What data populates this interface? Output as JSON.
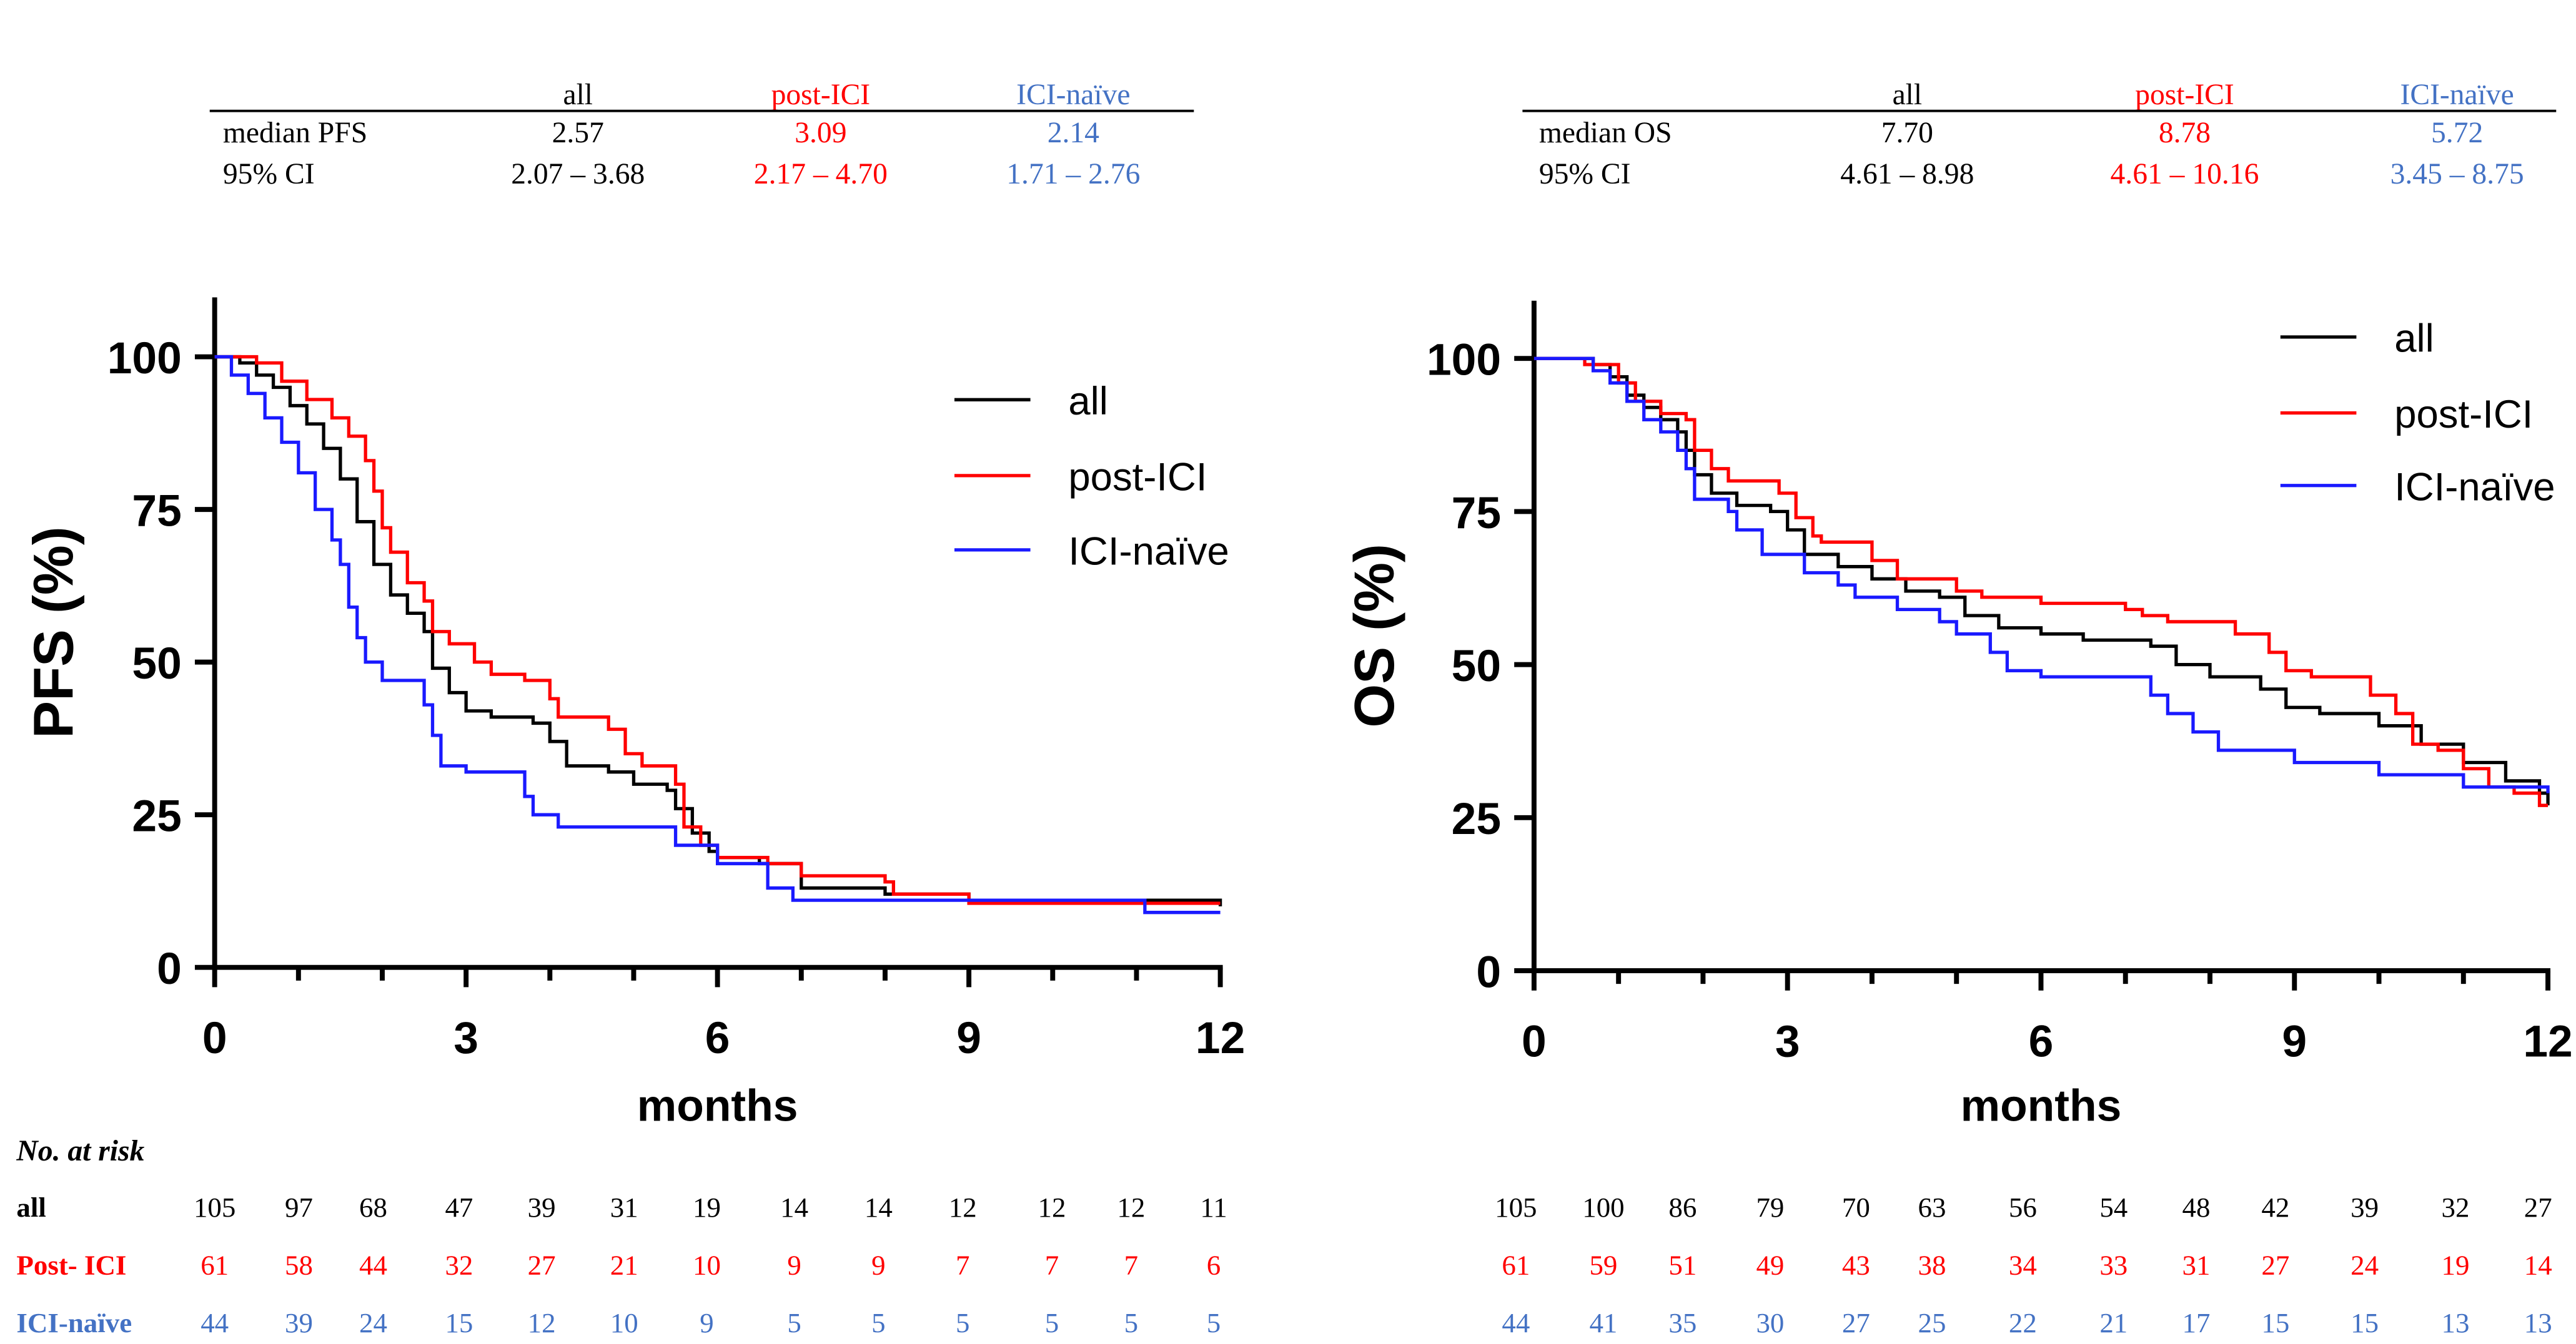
{
  "colors": {
    "all": "#000000",
    "post": "#ff0000",
    "naive": "#1a1aff",
    "naive_text": "#4472c4"
  },
  "chart_data": [
    {
      "type": "line",
      "subtype": "kaplan-meier",
      "ylabel": "PFS (%)",
      "xlabel": "months",
      "xlim": [
        0,
        12
      ],
      "ylim": [
        0,
        100
      ],
      "xticks": [
        0,
        3,
        6,
        9,
        12
      ],
      "yticks": [
        0,
        25,
        50,
        75,
        100
      ],
      "legend_position": "top-right",
      "summary": {
        "headers": [
          "all",
          "post-ICI",
          "ICI-naïve"
        ],
        "rows": [
          {
            "label": "median PFS",
            "values": [
              "2.57",
              "3.09",
              "2.14"
            ]
          },
          {
            "label": "95% CI",
            "values": [
              "2.07 – 3.68",
              "2.17 – 4.70",
              "1.71 – 2.76"
            ]
          }
        ]
      },
      "series": [
        {
          "name": "all",
          "key": "all",
          "points": [
            [
              0,
              100
            ],
            [
              0.3,
              99
            ],
            [
              0.5,
              97
            ],
            [
              0.7,
              95
            ],
            [
              0.9,
              92
            ],
            [
              1.1,
              89
            ],
            [
              1.3,
              85
            ],
            [
              1.5,
              80
            ],
            [
              1.7,
              73
            ],
            [
              1.9,
              66
            ],
            [
              2.1,
              61
            ],
            [
              2.3,
              58
            ],
            [
              2.5,
              55
            ],
            [
              2.6,
              49
            ],
            [
              2.8,
              45
            ],
            [
              3.0,
              42
            ],
            [
              3.3,
              41
            ],
            [
              3.8,
              40
            ],
            [
              4.0,
              37
            ],
            [
              4.2,
              33
            ],
            [
              4.7,
              32
            ],
            [
              5.0,
              30
            ],
            [
              5.4,
              29
            ],
            [
              5.5,
              26
            ],
            [
              5.7,
              22
            ],
            [
              5.9,
              19
            ],
            [
              6.0,
              18
            ],
            [
              6.5,
              17
            ],
            [
              7.0,
              13
            ],
            [
              8.0,
              12
            ],
            [
              9.0,
              11
            ],
            [
              11.0,
              11
            ],
            [
              12,
              10
            ]
          ]
        },
        {
          "name": "post-ICI",
          "key": "post",
          "points": [
            [
              0,
              100
            ],
            [
              0.5,
              99
            ],
            [
              0.8,
              96
            ],
            [
              1.1,
              93
            ],
            [
              1.4,
              90
            ],
            [
              1.6,
              87
            ],
            [
              1.8,
              83
            ],
            [
              1.9,
              78
            ],
            [
              2.0,
              72
            ],
            [
              2.1,
              68
            ],
            [
              2.3,
              63
            ],
            [
              2.5,
              60
            ],
            [
              2.6,
              55
            ],
            [
              2.8,
              53
            ],
            [
              3.1,
              50
            ],
            [
              3.3,
              48
            ],
            [
              3.7,
              47
            ],
            [
              4.0,
              44
            ],
            [
              4.1,
              41
            ],
            [
              4.7,
              39
            ],
            [
              4.9,
              35
            ],
            [
              5.1,
              33
            ],
            [
              5.5,
              30
            ],
            [
              5.6,
              23
            ],
            [
              5.8,
              20
            ],
            [
              6.0,
              18
            ],
            [
              6.6,
              17
            ],
            [
              7.0,
              15
            ],
            [
              8.0,
              14
            ],
            [
              8.1,
              12
            ],
            [
              9.0,
              10.5
            ],
            [
              12,
              10.5
            ]
          ]
        },
        {
          "name": "ICI-naïve",
          "key": "naive",
          "points": [
            [
              0,
              100
            ],
            [
              0.2,
              97
            ],
            [
              0.4,
              94
            ],
            [
              0.6,
              90
            ],
            [
              0.8,
              86
            ],
            [
              1.0,
              81
            ],
            [
              1.2,
              75
            ],
            [
              1.4,
              70
            ],
            [
              1.5,
              66
            ],
            [
              1.6,
              59
            ],
            [
              1.7,
              54
            ],
            [
              1.8,
              50
            ],
            [
              2.0,
              47
            ],
            [
              2.5,
              43
            ],
            [
              2.6,
              38
            ],
            [
              2.7,
              33
            ],
            [
              3.0,
              32
            ],
            [
              3.7,
              28
            ],
            [
              3.8,
              25
            ],
            [
              4.1,
              23
            ],
            [
              5.5,
              20
            ],
            [
              6.0,
              17
            ],
            [
              6.6,
              13
            ],
            [
              6.9,
              11
            ],
            [
              11.0,
              11
            ],
            [
              11.1,
              9
            ],
            [
              12,
              9
            ]
          ]
        }
      ],
      "risk_table": {
        "title": "No. at risk",
        "rows": [
          {
            "label": "all",
            "key": "all",
            "values": [
              105,
              97,
              68,
              47,
              39,
              31,
              19,
              14,
              14,
              12,
              12,
              12,
              11
            ]
          },
          {
            "label": "Post- ICI",
            "key": "post",
            "values": [
              61,
              58,
              44,
              32,
              27,
              21,
              10,
              9,
              9,
              7,
              7,
              7,
              6
            ]
          },
          {
            "label": "ICI-naïve",
            "key": "naive",
            "values": [
              44,
              39,
              24,
              15,
              12,
              10,
              9,
              5,
              5,
              5,
              5,
              5,
              5
            ]
          }
        ]
      }
    },
    {
      "type": "line",
      "subtype": "kaplan-meier",
      "ylabel": "OS (%)",
      "xlabel": "months",
      "xlim": [
        0,
        12
      ],
      "ylim": [
        0,
        100
      ],
      "xticks": [
        0,
        3,
        6,
        9,
        12
      ],
      "yticks": [
        0,
        25,
        50,
        75,
        100
      ],
      "legend_position": "top-right",
      "summary": {
        "headers": [
          "all",
          "post-ICI",
          "ICI-naïve"
        ],
        "rows": [
          {
            "label": "median OS",
            "values": [
              "7.70",
              "8.78",
              "5.72"
            ]
          },
          {
            "label": "95% CI",
            "values": [
              "4.61 – 8.98",
              "4.61 – 10.16",
              "3.45 – 8.75"
            ]
          }
        ]
      },
      "series": [
        {
          "name": "all",
          "key": "all",
          "points": [
            [
              0,
              100
            ],
            [
              0.7,
              99
            ],
            [
              0.9,
              97
            ],
            [
              1.1,
              94
            ],
            [
              1.3,
              92
            ],
            [
              1.5,
              90
            ],
            [
              1.7,
              88
            ],
            [
              1.8,
              85
            ],
            [
              1.9,
              81
            ],
            [
              2.1,
              78
            ],
            [
              2.4,
              76
            ],
            [
              2.8,
              75
            ],
            [
              3.0,
              72
            ],
            [
              3.2,
              68
            ],
            [
              3.6,
              66
            ],
            [
              4.0,
              64
            ],
            [
              4.4,
              62
            ],
            [
              4.8,
              61
            ],
            [
              5.1,
              58
            ],
            [
              5.5,
              56
            ],
            [
              6.0,
              55
            ],
            [
              6.5,
              54
            ],
            [
              7.3,
              53
            ],
            [
              7.6,
              50
            ],
            [
              8.0,
              48
            ],
            [
              8.6,
              46
            ],
            [
              8.9,
              43
            ],
            [
              9.3,
              42
            ],
            [
              10.0,
              40
            ],
            [
              10.5,
              37
            ],
            [
              11.0,
              34
            ],
            [
              11.5,
              31
            ],
            [
              11.9,
              29
            ],
            [
              12,
              27
            ]
          ]
        },
        {
          "name": "post-ICI",
          "key": "post",
          "points": [
            [
              0,
              100
            ],
            [
              0.6,
              99
            ],
            [
              1.0,
              96
            ],
            [
              1.2,
              93
            ],
            [
              1.5,
              91
            ],
            [
              1.8,
              90
            ],
            [
              1.9,
              85
            ],
            [
              2.1,
              82
            ],
            [
              2.3,
              80
            ],
            [
              2.9,
              78
            ],
            [
              3.1,
              74
            ],
            [
              3.3,
              71
            ],
            [
              3.4,
              70
            ],
            [
              4.0,
              67
            ],
            [
              4.3,
              64
            ],
            [
              5.0,
              62
            ],
            [
              5.3,
              61
            ],
            [
              6.0,
              60
            ],
            [
              7.0,
              59
            ],
            [
              7.2,
              58
            ],
            [
              7.5,
              57
            ],
            [
              8.3,
              55
            ],
            [
              8.7,
              52
            ],
            [
              8.9,
              49
            ],
            [
              9.2,
              48
            ],
            [
              9.9,
              45
            ],
            [
              10.2,
              42
            ],
            [
              10.4,
              37
            ],
            [
              10.7,
              36
            ],
            [
              11.0,
              33
            ],
            [
              11.3,
              30
            ],
            [
              11.6,
              29
            ],
            [
              11.9,
              27
            ],
            [
              12,
              27
            ]
          ]
        },
        {
          "name": "ICI-naïve",
          "key": "naive",
          "points": [
            [
              0,
              100
            ],
            [
              0.7,
              98
            ],
            [
              0.9,
              96
            ],
            [
              1.1,
              93
            ],
            [
              1.3,
              90
            ],
            [
              1.5,
              88
            ],
            [
              1.7,
              85
            ],
            [
              1.8,
              82
            ],
            [
              1.9,
              77
            ],
            [
              2.3,
              75
            ],
            [
              2.4,
              72
            ],
            [
              2.7,
              68
            ],
            [
              3.2,
              65
            ],
            [
              3.6,
              63
            ],
            [
              3.8,
              61
            ],
            [
              4.3,
              59
            ],
            [
              4.8,
              57
            ],
            [
              5.0,
              55
            ],
            [
              5.4,
              52
            ],
            [
              5.6,
              49
            ],
            [
              6.0,
              48
            ],
            [
              7.3,
              45
            ],
            [
              7.5,
              42
            ],
            [
              7.8,
              39
            ],
            [
              8.1,
              36
            ],
            [
              9.0,
              34
            ],
            [
              10.0,
              32
            ],
            [
              11.0,
              30
            ],
            [
              12,
              29
            ]
          ]
        }
      ],
      "risk_table": {
        "title": "",
        "rows": [
          {
            "label": "",
            "key": "all",
            "values": [
              105,
              100,
              86,
              79,
              70,
              63,
              56,
              54,
              48,
              42,
              39,
              32,
              27
            ]
          },
          {
            "label": "",
            "key": "post",
            "values": [
              61,
              59,
              51,
              49,
              43,
              38,
              34,
              33,
              31,
              27,
              24,
              19,
              14
            ]
          },
          {
            "label": "",
            "key": "naive",
            "values": [
              44,
              41,
              35,
              30,
              27,
              25,
              22,
              21,
              17,
              15,
              15,
              13,
              13
            ]
          }
        ]
      }
    }
  ]
}
